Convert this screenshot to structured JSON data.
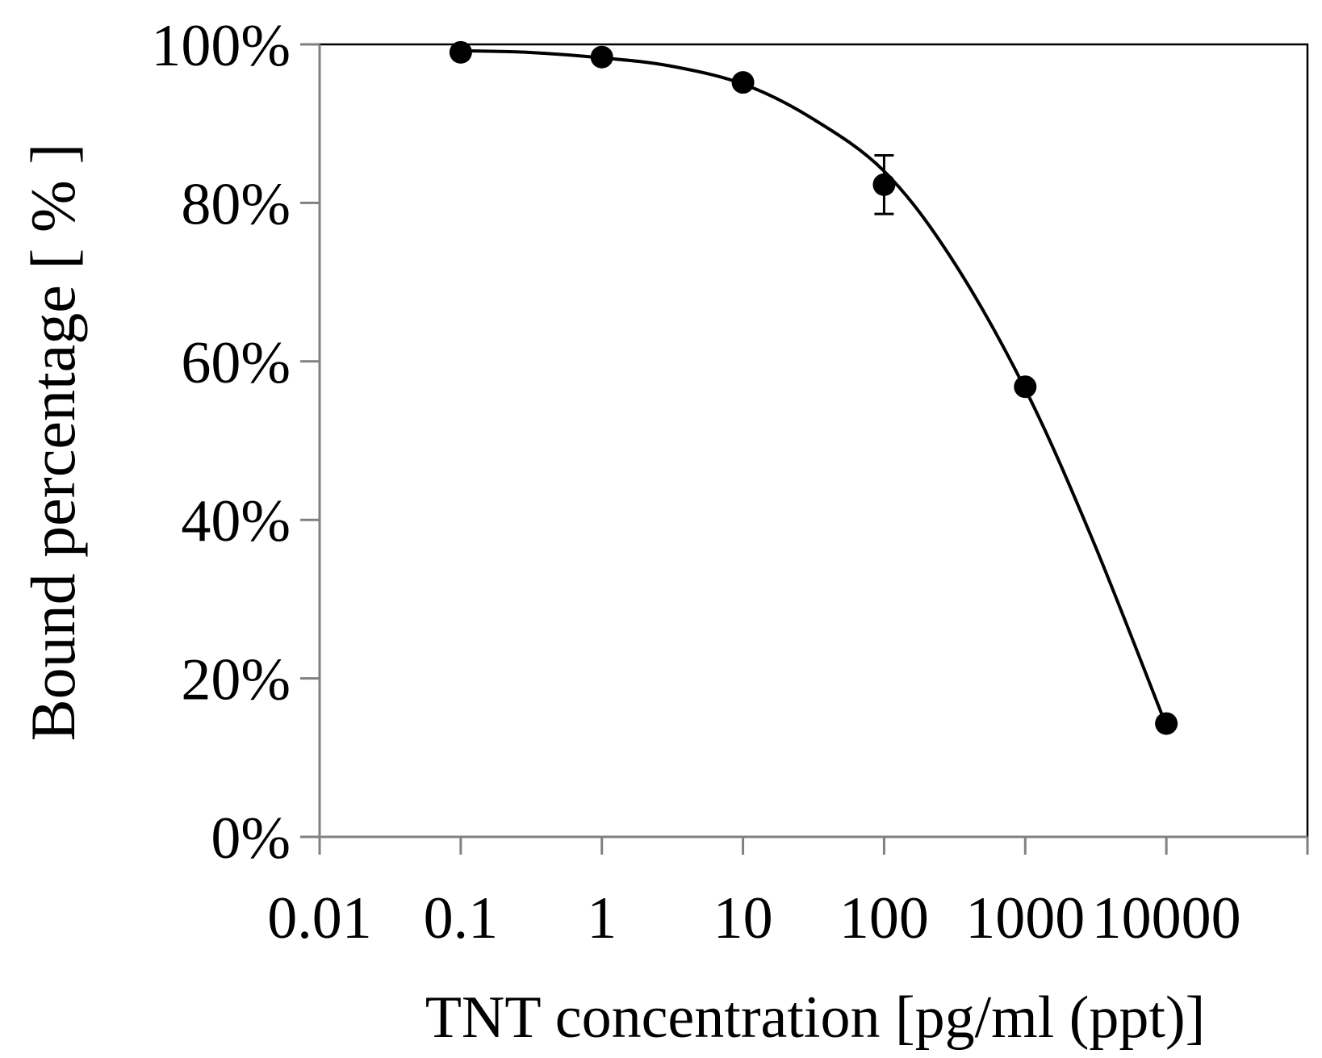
{
  "chart_data": {
    "type": "scatter",
    "title": "",
    "xlabel": "TNT concentration [pg/ml (ppt)]",
    "ylabel": "Bound percentage [ % ]",
    "x_scale": "log",
    "xlim": [
      0.01,
      100000
    ],
    "ylim": [
      0,
      100
    ],
    "x_tick_values": [
      0.01,
      0.1,
      1,
      10,
      100,
      1000,
      10000,
      100000
    ],
    "x_tick_labels": [
      "0.01",
      "0.1",
      "1",
      "10",
      "100",
      "1000",
      "10000",
      ""
    ],
    "y_tick_values": [
      0,
      20,
      40,
      60,
      80,
      100
    ],
    "y_tick_labels": [
      "0%",
      "20%",
      "40%",
      "60%",
      "80%",
      "100%"
    ],
    "grid": false,
    "series": [
      {
        "name": "Bound percentage",
        "x": [
          0.1,
          1,
          10,
          100,
          1000,
          10000
        ],
        "y": [
          99.0,
          98.4,
          95.2,
          82.3,
          56.8,
          14.3
        ],
        "error": [
          0.4,
          0.4,
          0.5,
          3.7,
          0.8,
          1.0
        ]
      }
    ],
    "fit_curve": {
      "name": "fit",
      "x": [
        0.1,
        0.3,
        1,
        3,
        10,
        30,
        100,
        300,
        1000,
        3000,
        10000
      ],
      "y": [
        99.2,
        99.0,
        98.3,
        97.3,
        95.0,
        90.8,
        84.0,
        73.0,
        56.5,
        37.5,
        14.0
      ]
    }
  }
}
